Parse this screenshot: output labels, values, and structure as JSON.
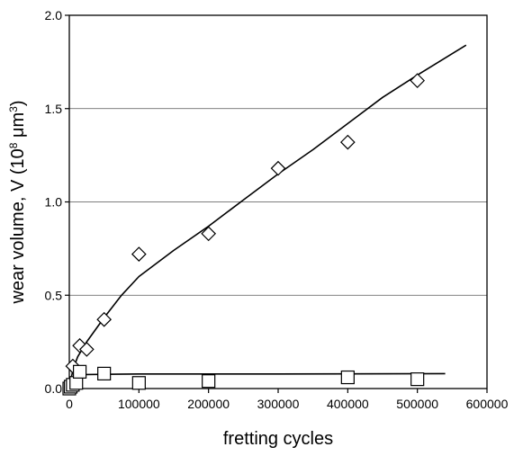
{
  "chart_data": {
    "type": "scatter",
    "title": "",
    "xlabel": "fretting cycles",
    "ylabel": "wear volume, V (10",
    "ylabel_exp": "8",
    "ylabel_unit": " μm",
    "ylabel_unit_exp": "3",
    "ylabel_close": ")",
    "xlim": [
      0,
      600000
    ],
    "ylim": [
      0,
      2.0
    ],
    "x_ticks": [
      0,
      100000,
      200000,
      300000,
      400000,
      500000,
      600000
    ],
    "x_tick_labels": [
      "0",
      "100000",
      "200000",
      "300000",
      "400000",
      "500000",
      "600000"
    ],
    "y_ticks": [
      0,
      0.5,
      1.0,
      1.5,
      2.0
    ],
    "y_tick_labels": [
      "0.0",
      "0.5",
      "1.0",
      "1.5",
      "2.0"
    ],
    "grid": "horizontal",
    "series": [
      {
        "marker": "diamond",
        "x": [
          5000,
          15000,
          25000,
          50000,
          100000,
          200000,
          300000,
          400000,
          500000
        ],
        "y": [
          0.12,
          0.23,
          0.21,
          0.37,
          0.72,
          0.83,
          1.18,
          1.32,
          1.65
        ]
      },
      {
        "marker": "square",
        "x": [
          0,
          2000,
          5000,
          10000,
          15000,
          50000,
          100000,
          200000,
          400000,
          500000
        ],
        "y": [
          0.0,
          0.01,
          0.02,
          0.03,
          0.09,
          0.08,
          0.03,
          0.04,
          0.06,
          0.05
        ]
      }
    ],
    "fit_lines": [
      {
        "x": [
          0,
          5000,
          12000,
          25000,
          50000,
          75000,
          100000,
          150000,
          200000,
          250000,
          300000,
          350000,
          400000,
          450000,
          500000,
          570000
        ],
        "y": [
          0.0,
          0.1,
          0.17,
          0.25,
          0.38,
          0.5,
          0.6,
          0.74,
          0.87,
          1.01,
          1.15,
          1.28,
          1.42,
          1.56,
          1.68,
          1.84
        ]
      },
      {
        "x": [
          0,
          5000,
          12000,
          25000,
          100000,
          300000,
          540000
        ],
        "y": [
          0.0,
          0.05,
          0.07,
          0.075,
          0.078,
          0.078,
          0.08
        ]
      }
    ]
  }
}
